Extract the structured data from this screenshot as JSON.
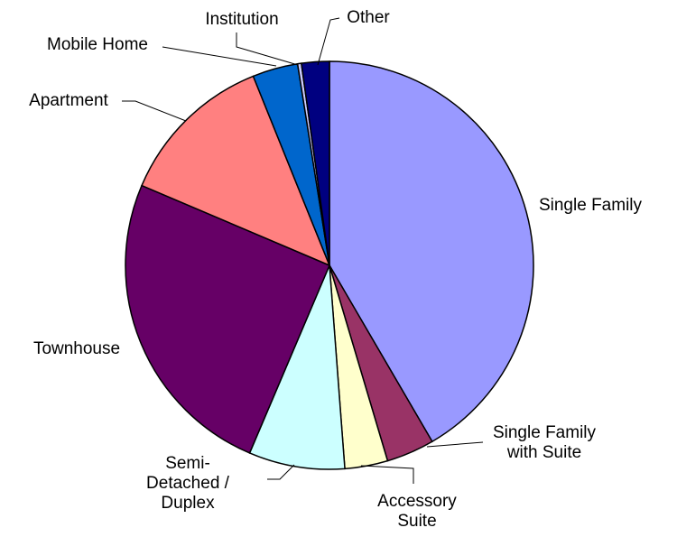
{
  "chart_data": {
    "type": "pie",
    "categories": [
      "Single Family",
      "Single Family with Suite",
      "Accessory Suite",
      "Semi-Detached / Duplex",
      "Townhouse",
      "Apartment",
      "Mobile Home",
      "Institution",
      "Other"
    ],
    "values": [
      41.6,
      3.8,
      3.4,
      7.6,
      25,
      12.5,
      3.6,
      0.3,
      2.2
    ],
    "colors": [
      "#9999ff",
      "#993366",
      "#ffffcc",
      "#ccffff",
      "#660066",
      "#ff8080",
      "#0066cc",
      "#ccccff",
      "#000080"
    ]
  }
}
